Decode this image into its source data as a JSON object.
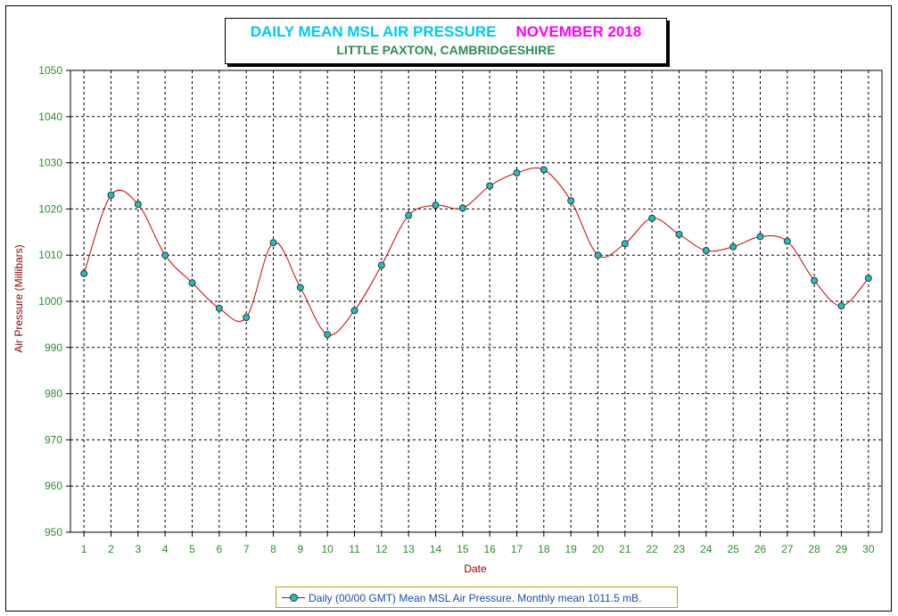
{
  "title": {
    "main": "DAILY MEAN MSL AIR PRESSURE",
    "month": "NOVEMBER 2018",
    "subtitle": "LITTLE PAXTON, CAMBRIDGESHIRE"
  },
  "colors": {
    "title_main": "#00c8f0",
    "title_month": "#ff00ff",
    "subtitle": "#2e8b57",
    "line": "#cc0000",
    "marker_fill": "#20c0c0",
    "tick_labels": "#2e8b2e",
    "axis_titles": "#8b0000",
    "legend_text": "#1a4fa0"
  },
  "chart_data": {
    "type": "line",
    "xlabel": "Date",
    "ylabel": "Air Pressure (Millibars)",
    "ylim": [
      950,
      1050
    ],
    "yticks": [
      950,
      960,
      970,
      980,
      990,
      1000,
      1010,
      1020,
      1030,
      1040,
      1050
    ],
    "x": [
      1,
      2,
      3,
      4,
      5,
      6,
      7,
      8,
      9,
      10,
      11,
      12,
      13,
      14,
      15,
      16,
      17,
      18,
      19,
      20,
      21,
      22,
      23,
      24,
      25,
      26,
      27,
      28,
      29,
      30
    ],
    "series": [
      {
        "name": "Daily (00/00 GMT) Mean MSL Air Pressure. Monthly mean 1011.5 mB.",
        "values": [
          1006,
          1023,
          1021,
          1010,
          1004,
          998.5,
          996.5,
          1012.7,
          1003,
          992.8,
          998,
          1007.8,
          1018.6,
          1020.8,
          1020.2,
          1025,
          1027.8,
          1028.5,
          1021.8,
          1010,
          1012.5,
          1018,
          1014.5,
          1011,
          1011.8,
          1014,
          1013,
          1004.5,
          999,
          1005
        ]
      }
    ],
    "grid": true,
    "legend_position": "bottom"
  }
}
